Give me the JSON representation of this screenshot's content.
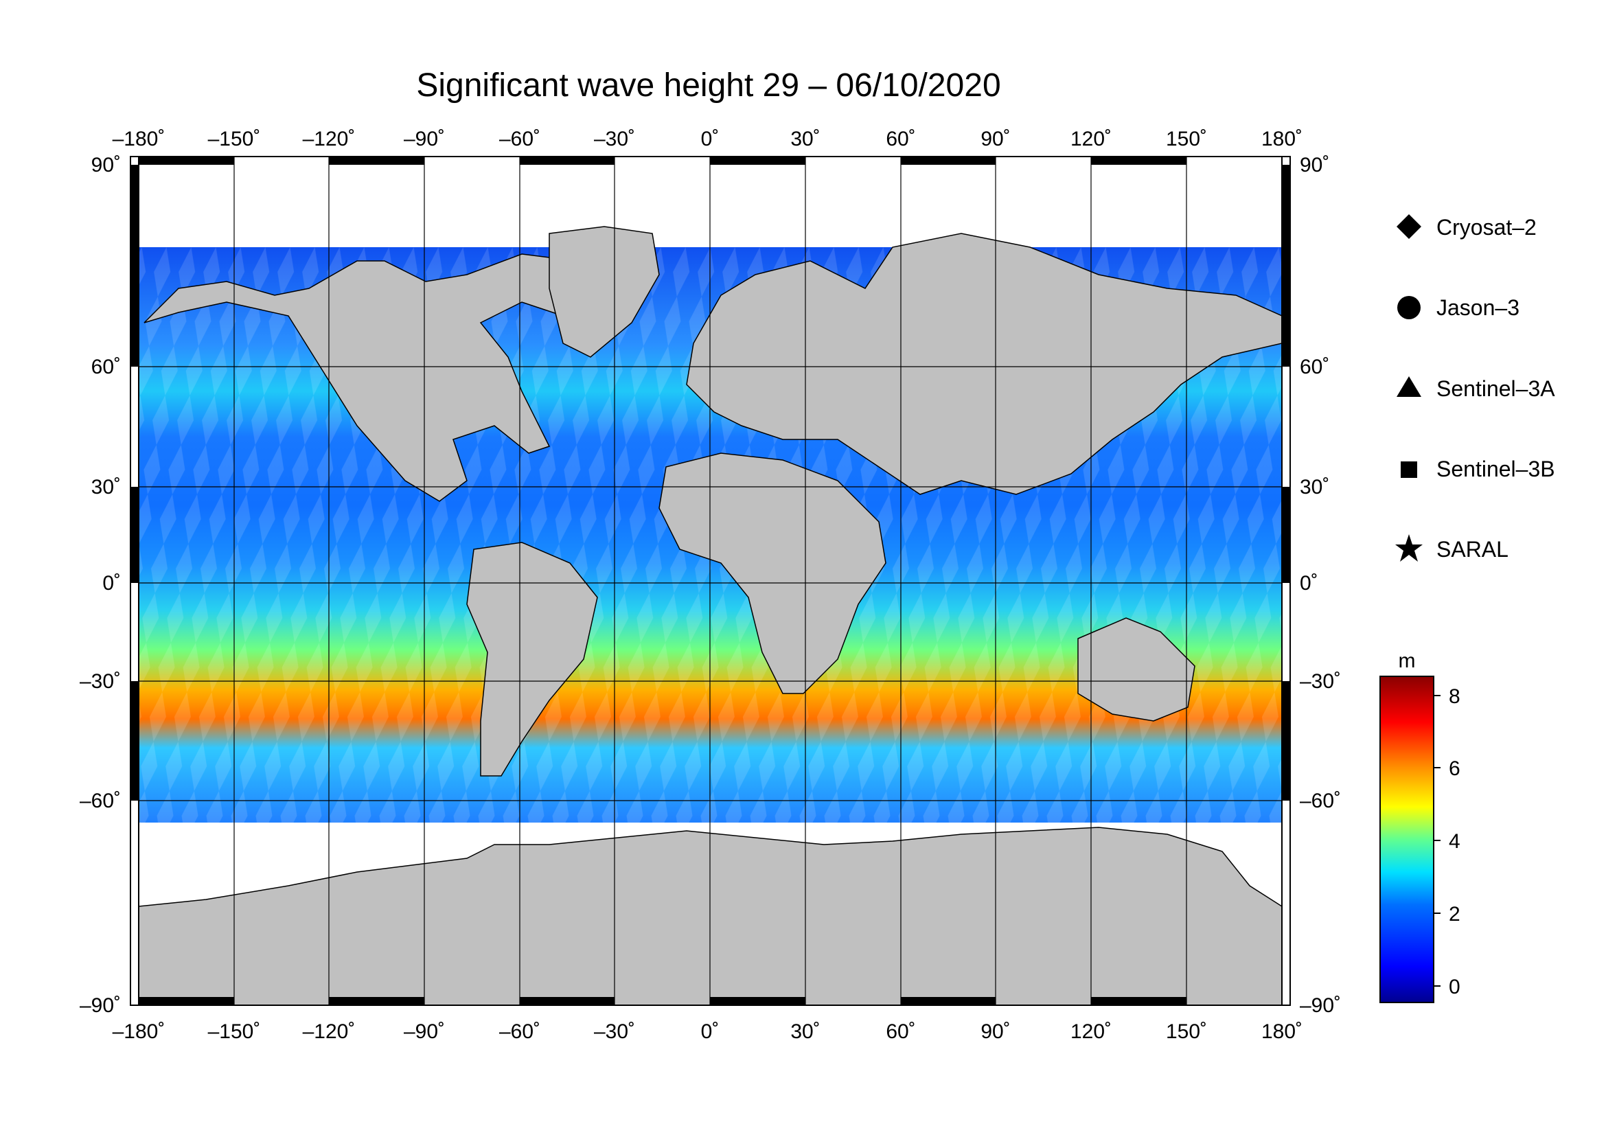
{
  "title": "Significant wave height 29 – 06/10/2020",
  "x_ticks": [
    "–180˚",
    "–150˚",
    "–120˚",
    "–90˚",
    "–60˚",
    "–30˚",
    "0˚",
    "30˚",
    "60˚",
    "90˚",
    "120˚",
    "150˚",
    "180˚"
  ],
  "y_ticks_left": [
    "90˚",
    "60˚",
    "30˚",
    "0˚",
    "–30˚",
    "–60˚",
    "–90˚"
  ],
  "y_ticks_right": [
    "90˚",
    "60˚",
    "30˚",
    "0˚",
    "–30˚",
    "–60˚",
    "–90˚"
  ],
  "legend": [
    {
      "label": "Cryosat–2",
      "symbol": "diamond-icon"
    },
    {
      "label": "Jason–3",
      "symbol": "circle-icon"
    },
    {
      "label": "Sentinel–3A",
      "symbol": "triangle-icon"
    },
    {
      "label": "Sentinel–3B",
      "symbol": "square-icon"
    },
    {
      "label": "SARAL",
      "symbol": "star-icon"
    }
  ],
  "colorbar": {
    "unit": "m",
    "ticks": [
      "8",
      "6",
      "4",
      "2",
      "0"
    ],
    "range": [
      -0.8,
      8.6
    ],
    "colors": [
      "#00008f",
      "#0000ff",
      "#0080ff",
      "#00ffff",
      "#80ff80",
      "#ffff00",
      "#ff8000",
      "#ff0000",
      "#800000"
    ]
  },
  "colors": {
    "land": "#c0c0c0",
    "sea_ice": "#ffffff",
    "grid": "#000000"
  },
  "chart_data": {
    "type": "heatmap",
    "title": "Significant wave height 29 – 06/10/2020",
    "x_range": [
      -180,
      180
    ],
    "y_range": [
      -90,
      90
    ],
    "x_ticks": [
      -180,
      -150,
      -120,
      -90,
      -60,
      -30,
      0,
      30,
      60,
      90,
      120,
      150,
      180
    ],
    "y_ticks": [
      90,
      60,
      30,
      0,
      -30,
      -60,
      -90
    ],
    "value_unit": "m",
    "value_range": [
      0,
      8
    ],
    "grid": true,
    "legend_position": "right"
  }
}
